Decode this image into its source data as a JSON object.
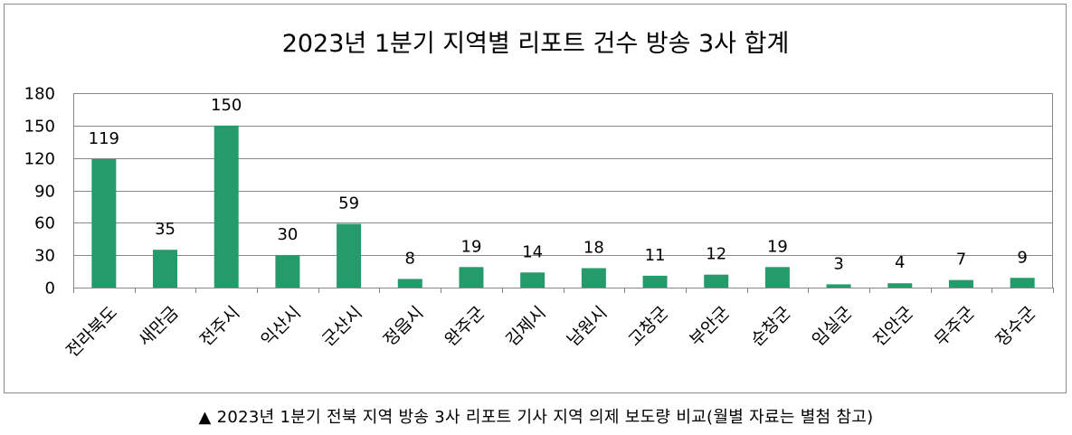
{
  "caption": "▲ 2023년 1분기 전북 지역 방송 3사 리포트 기사 지역 의제 보도량 비교(월별 자료는 별첨 참고)",
  "chart_data": {
    "type": "bar",
    "title": "2023년 1분기 지역별 리포트 건수 방송 3사 합계",
    "xlabel": "",
    "ylabel": "",
    "categories": [
      "전라북도",
      "새만금",
      "전주시",
      "익산시",
      "군산시",
      "정읍시",
      "완주군",
      "김제시",
      "남원시",
      "고창군",
      "부안군",
      "순창군",
      "임실군",
      "진안군",
      "무주군",
      "장수군"
    ],
    "values": [
      119,
      35,
      150,
      30,
      59,
      8,
      19,
      14,
      18,
      11,
      12,
      19,
      3,
      4,
      7,
      9
    ],
    "ylim": [
      0,
      180
    ],
    "yticks": [
      0,
      30,
      60,
      90,
      120,
      150,
      180
    ],
    "grid": true,
    "legend": "none",
    "bar_color": "#259b6c",
    "grid_color": "#888888"
  }
}
